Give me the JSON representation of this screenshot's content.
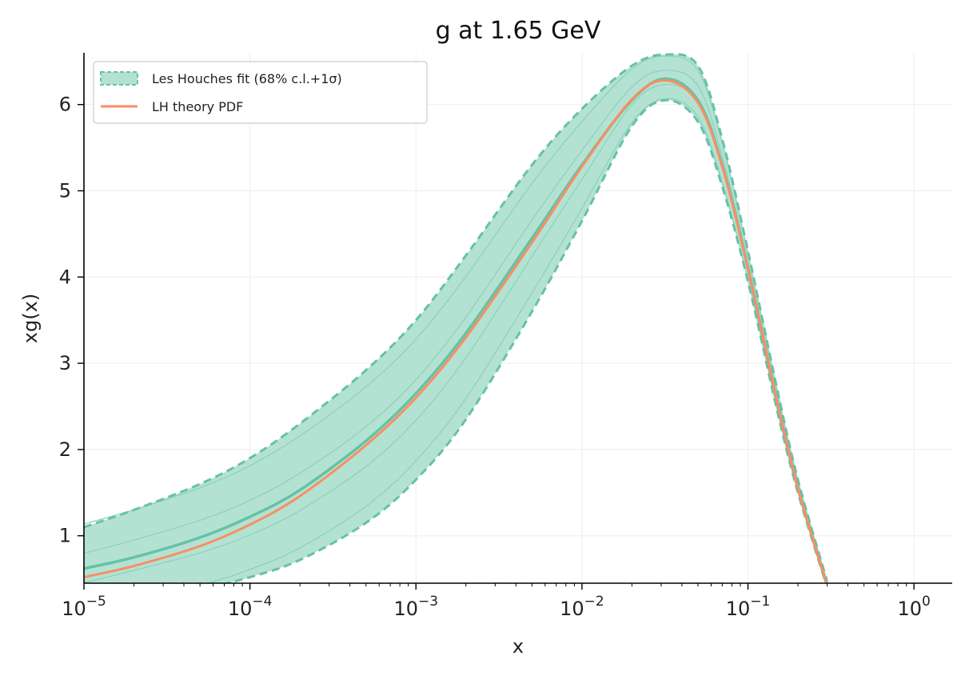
{
  "chart_data": {
    "type": "line",
    "title": "g at 1.65 GeV",
    "xlabel": "x",
    "ylabel": "xg(x)",
    "xscale": "log",
    "xlim": [
      1e-05,
      1.7
    ],
    "ylim": [
      0.45,
      6.6
    ],
    "grid": true,
    "legend_position": "top-left",
    "x_ticks": [
      {
        "value": 1e-05,
        "base": "10",
        "exp": "−5"
      },
      {
        "value": 0.0001,
        "base": "10",
        "exp": "−4"
      },
      {
        "value": 0.001,
        "base": "10",
        "exp": "−3"
      },
      {
        "value": 0.01,
        "base": "10",
        "exp": "−2"
      },
      {
        "value": 0.1,
        "base": "10",
        "exp": "−1"
      },
      {
        "value": 1,
        "base": "10",
        "exp": "0"
      }
    ],
    "y_ticks": [
      1,
      2,
      3,
      4,
      5,
      6
    ],
    "x": [
      1e-05,
      2e-05,
      5e-05,
      0.0001,
      0.0002,
      0.0005,
      0.001,
      0.002,
      0.005,
      0.01,
      0.02,
      0.032,
      0.05,
      0.07,
      0.1,
      0.15,
      0.2,
      0.3
    ],
    "series": [
      {
        "name": "Les Houches fit (68% c.l.+1σ)",
        "kind": "band",
        "color": "#66c2a5",
        "fill": "#b3e2d3",
        "central": [
          0.62,
          0.75,
          0.98,
          1.22,
          1.53,
          2.1,
          2.65,
          3.35,
          4.45,
          5.3,
          6.05,
          6.3,
          6.05,
          5.3,
          4.1,
          2.55,
          1.55,
          0.42
        ],
        "upper": [
          1.1,
          1.3,
          1.6,
          1.9,
          2.3,
          2.92,
          3.5,
          4.25,
          5.3,
          5.95,
          6.45,
          6.58,
          6.45,
          5.6,
          4.3,
          2.7,
          1.65,
          0.47
        ],
        "lower": [
          0.15,
          0.25,
          0.38,
          0.52,
          0.72,
          1.15,
          1.65,
          2.35,
          3.6,
          4.65,
          5.75,
          6.05,
          5.8,
          5.05,
          3.95,
          2.45,
          1.5,
          0.4
        ]
      },
      {
        "name": "LH theory PDF",
        "kind": "line",
        "color": "#fc8d62",
        "values": [
          0.52,
          0.65,
          0.88,
          1.13,
          1.46,
          2.05,
          2.6,
          3.3,
          4.4,
          5.28,
          6.06,
          6.28,
          6.02,
          5.28,
          4.1,
          2.55,
          1.55,
          0.42
        ]
      }
    ]
  }
}
